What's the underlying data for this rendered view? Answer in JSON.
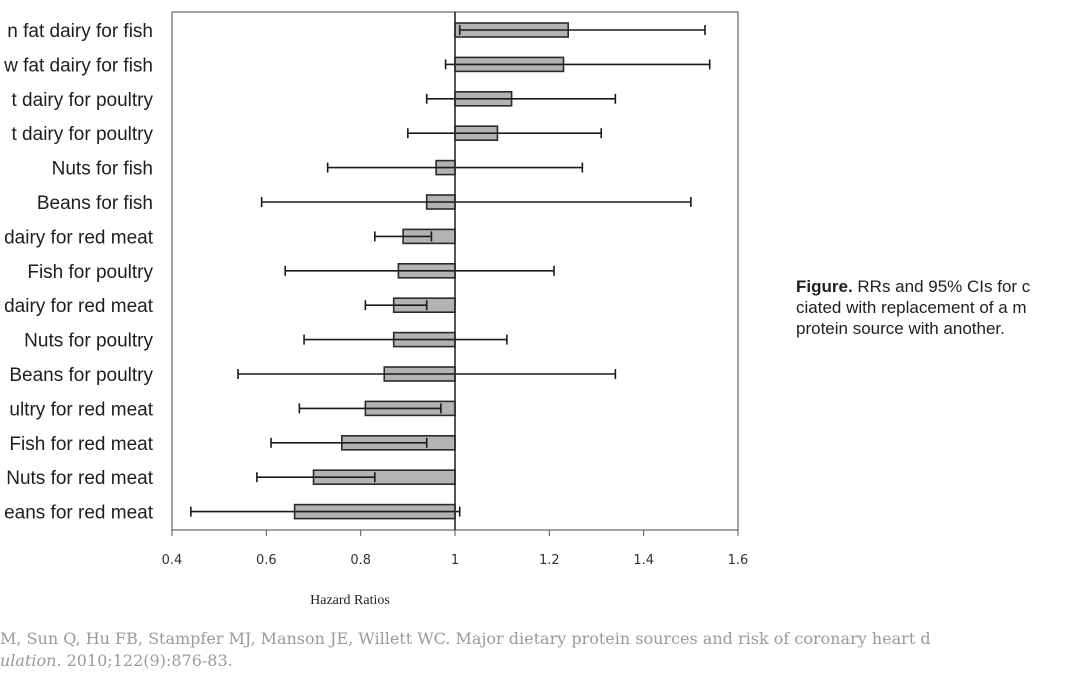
{
  "chart_data": {
    "type": "bar",
    "orientation": "horizontal",
    "baseline": 1,
    "categories": [
      "Low fat dairy for fish",
      "Whole fat dairy for fish",
      "Low fat dairy for poultry",
      "Whole fat dairy for poultry",
      "Nuts for fish",
      "Beans for fish",
      "Low fat dairy for red meat",
      "Fish for poultry",
      "Whole fat dairy for red meat",
      "Nuts for poultry",
      "Beans for poultry",
      "Poultry for red meat",
      "Fish for red meat",
      "Nuts for red meat",
      "Beans for red meat"
    ],
    "visible_labels": [
      "n fat dairy for fish",
      "w fat dairy for fish",
      "t dairy for poultry",
      "t dairy for poultry",
      "Nuts for fish",
      "Beans for fish",
      "dairy for red meat",
      "Fish for poultry",
      "dairy for red meat",
      "Nuts for poultry",
      "Beans for poultry",
      "ultry for red meat",
      "Fish for red meat",
      "Nuts for red meat",
      "eans for red meat"
    ],
    "values": [
      1.24,
      1.23,
      1.12,
      1.09,
      0.96,
      0.94,
      0.89,
      0.88,
      0.87,
      0.87,
      0.85,
      0.81,
      0.76,
      0.7,
      0.66
    ],
    "ci_lower": [
      1.01,
      0.98,
      0.94,
      0.9,
      0.73,
      0.59,
      0.83,
      0.64,
      0.81,
      0.68,
      0.54,
      0.67,
      0.61,
      0.58,
      0.44
    ],
    "ci_upper": [
      1.53,
      1.54,
      1.34,
      1.31,
      1.27,
      1.5,
      0.95,
      1.21,
      0.94,
      1.11,
      1.34,
      0.97,
      0.94,
      0.83,
      1.01
    ],
    "xlabel": "Hazard Ratios",
    "ylabel": "",
    "xlim": [
      0.4,
      1.6
    ],
    "xticks": [
      0.4,
      0.6,
      0.8,
      1,
      1.2,
      1.4,
      1.6
    ],
    "xtick_labels": [
      "0.4",
      "0.6",
      "0.8",
      "1",
      "1.2",
      "1.4",
      "1.6"
    ],
    "grid": false,
    "colors": {
      "bar_fill": "#b3b3b3",
      "bar_stroke": "#2a2a2a",
      "axis": "#555555",
      "whisker": "#1a1a1a"
    }
  },
  "caption": {
    "bold": "Figure.",
    "line1_rest": " RRs and 95% CIs for c",
    "line2": "ciated with replacement of a m",
    "line3": "protein source with another."
  },
  "citation": {
    "line1": "M, Sun Q, Hu FB, Stampfer MJ, Manson JE, Willett WC. Major dietary protein sources and risk of coronary heart d",
    "line2_italic": "ulation",
    "line2_rest": ". 2010;122(9):876-83."
  }
}
